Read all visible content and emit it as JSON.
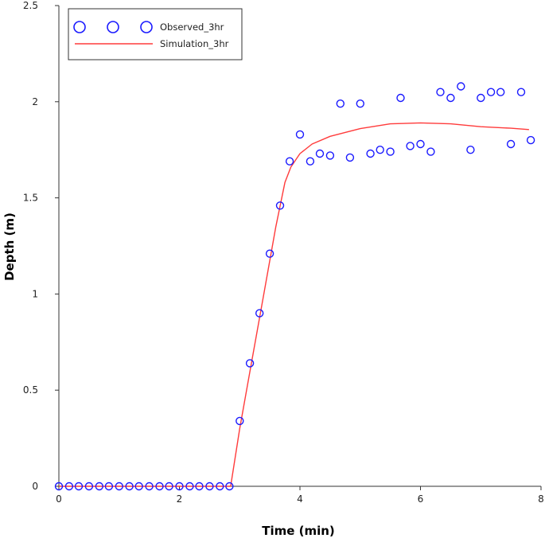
{
  "chart_data": {
    "type": "scatter",
    "xlabel": "Time (min)",
    "ylabel": "Depth (m)",
    "xlim": [
      0,
      8
    ],
    "ylim": [
      0,
      2.5
    ],
    "xticks": [
      0,
      2,
      4,
      6,
      8
    ],
    "yticks": [
      0,
      0.5,
      1,
      1.5,
      2,
      2.5
    ],
    "x_tick_labels": [
      "0",
      "2",
      "4",
      "6",
      "8"
    ],
    "y_tick_labels": [
      "0",
      "0.5",
      "1",
      "1.5",
      "2",
      "2.5"
    ],
    "grid": false,
    "legend_position": "top-left",
    "series": [
      {
        "name": "Observed_3hr",
        "kind": "markers",
        "marker": "circle",
        "color": "#1a1aff",
        "x": [
          0,
          0.17,
          0.33,
          0.5,
          0.67,
          0.83,
          1.0,
          1.17,
          1.33,
          1.5,
          1.67,
          1.83,
          2.0,
          2.17,
          2.33,
          2.5,
          2.67,
          2.83,
          3.0,
          3.17,
          3.33,
          3.5,
          3.67,
          3.83,
          4.0,
          4.17,
          4.33,
          4.5,
          4.67,
          4.83,
          5.0,
          5.17,
          5.33,
          5.5,
          5.67,
          5.83,
          6.0,
          6.17,
          6.33,
          6.5,
          6.67,
          6.83,
          7.0,
          7.17,
          7.33,
          7.5,
          7.67,
          7.83
        ],
        "y": [
          0,
          0,
          0,
          0,
          0,
          0,
          0,
          0,
          0,
          0,
          0,
          0,
          0,
          0,
          0,
          0,
          0,
          0,
          0.34,
          0.64,
          0.9,
          1.21,
          1.46,
          1.69,
          1.83,
          1.69,
          1.73,
          1.72,
          1.99,
          1.71,
          1.99,
          1.73,
          1.75,
          1.74,
          2.02,
          1.77,
          1.78,
          1.74,
          2.05,
          2.02,
          2.08,
          1.75,
          2.02,
          2.05,
          2.05,
          1.78,
          2.05,
          1.8
        ]
      },
      {
        "name": "Simulation_3hr",
        "kind": "line",
        "color": "#ff3b3b",
        "x": [
          0,
          2.85,
          3.0,
          3.2,
          3.4,
          3.6,
          3.75,
          3.85,
          4.0,
          4.2,
          4.5,
          5.0,
          5.5,
          6.0,
          6.5,
          7.0,
          7.5,
          7.8
        ],
        "y": [
          0,
          0,
          0.3,
          0.65,
          1.0,
          1.35,
          1.58,
          1.66,
          1.73,
          1.78,
          1.82,
          1.86,
          1.885,
          1.89,
          1.885,
          1.87,
          1.862,
          1.855
        ]
      }
    ]
  }
}
